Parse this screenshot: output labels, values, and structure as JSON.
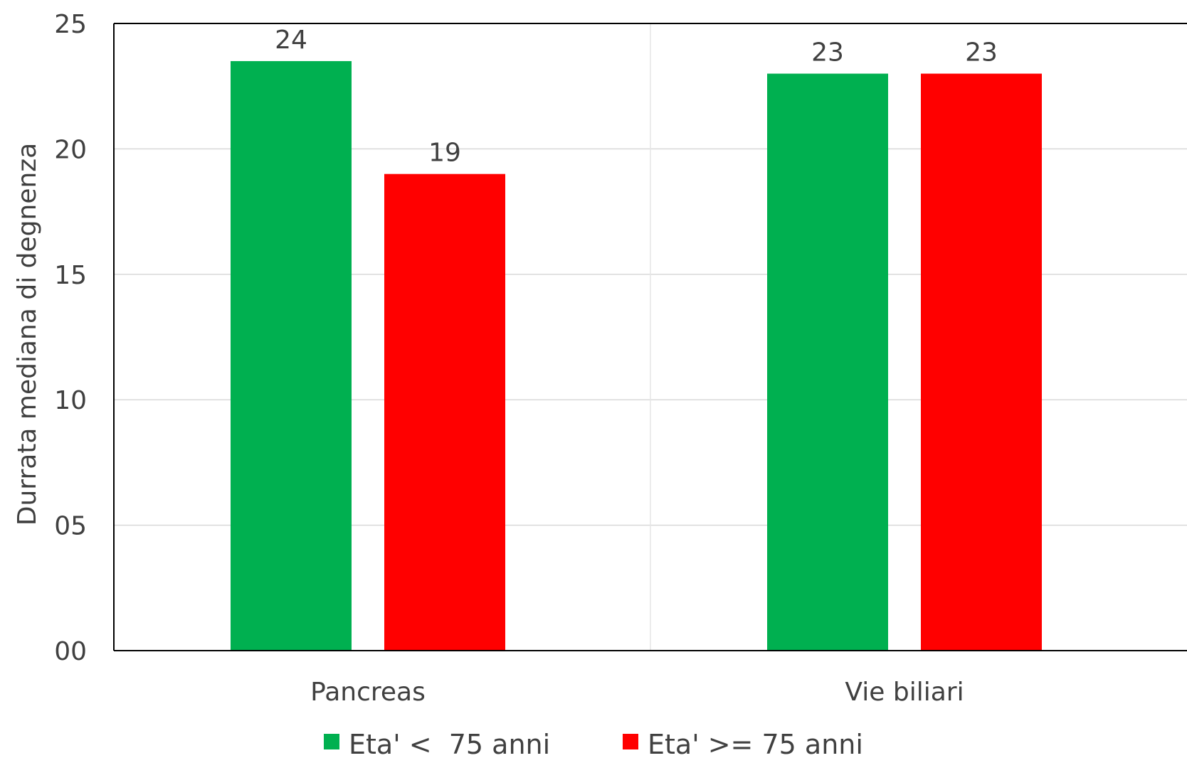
{
  "chart_data": {
    "type": "bar",
    "ylabel": "Durrata mediana di degnenza",
    "xlabel": "",
    "ylim": [
      0,
      25
    ],
    "y_ticks": [
      0,
      5,
      10,
      15,
      20,
      25
    ],
    "y_tick_labels": [
      "00",
      "05",
      "10",
      "15",
      "20",
      "25"
    ],
    "categories": [
      "Pancreas",
      "Vie biliari"
    ],
    "series": [
      {
        "name": "Eta' <  75 anni",
        "color": "#00b050",
        "values": [
          23.5,
          23
        ],
        "labels": [
          "24",
          "23"
        ]
      },
      {
        "name": "Eta' >= 75 anni",
        "color": "#ff0000",
        "values": [
          19,
          23
        ],
        "labels": [
          "19",
          "23"
        ]
      }
    ],
    "grid": true,
    "legend_position": "bottom"
  }
}
